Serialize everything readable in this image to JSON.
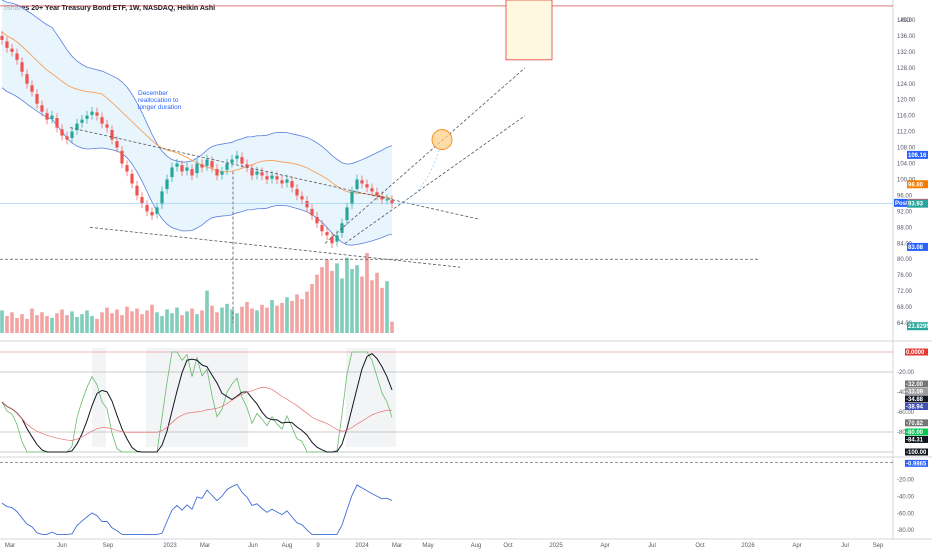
{
  "chart_data": {
    "type": "candlestick",
    "title": "iShares 20+ Year Treasury Bond ETF, 1W, NASDAQ, Heikin Ashi",
    "currency": "USD",
    "annotation": "December\nreallocation to\nlonger duration",
    "x_labels": [
      "Mar",
      "Jun",
      "Sep",
      "2023",
      "Mar",
      "Jun",
      "Aug",
      "9",
      "2024",
      "Mar",
      "May",
      "Aug",
      "Oct",
      "2025",
      "Apr",
      "Jul",
      "Oct",
      "2026",
      "Apr",
      "Jul",
      "Sep"
    ],
    "price_axis": {
      "labels": [
        "140.00",
        "136.00",
        "132.00",
        "128.00",
        "124.00",
        "120.00",
        "116.00",
        "112.00",
        "108.00",
        "104.00",
        "100.00",
        "96.00",
        "92.00",
        "88.00",
        "84.00",
        "80.00",
        "76.00",
        "72.00",
        "68.00",
        "64.00"
      ],
      "range": [
        61,
        145
      ]
    },
    "price_tags": [
      {
        "label": "106.16",
        "value": 106.16,
        "color": "#2962ff"
      },
      {
        "label": "98.80",
        "value": 98.8,
        "color": "#f57c00"
      },
      {
        "label": "94.13",
        "value": 94.13,
        "color": "#2962ff",
        "prefix": "Post"
      },
      {
        "label": "94.09",
        "value": 94.09,
        "color": "#ef5350"
      },
      {
        "label": "93.93",
        "value": 93.93,
        "color": "#26a69a"
      },
      {
        "label": "83.08",
        "value": 83.08,
        "color": "#2962ff"
      },
      {
        "label": "23.829M",
        "value": 63.2,
        "color": "#26a69a"
      }
    ],
    "osc1_axis": {
      "labels": [
        "-20.00",
        "-40.00",
        "-60.00",
        "-80.00"
      ],
      "range": [
        -103,
        4
      ]
    },
    "osc1_tags": [
      {
        "label": "0.0000",
        "value": 0,
        "color": "#e53935"
      },
      {
        "label": "-32.00",
        "value": -32,
        "color": "#757575"
      },
      {
        "label": "-33.09",
        "value": -33.09,
        "color": "#9e9e9e"
      },
      {
        "label": "-34.88",
        "value": -34.88,
        "color": "#131722"
      },
      {
        "label": "-38.94",
        "value": -38.94,
        "color": "#3f51b5"
      },
      {
        "label": "-70.82",
        "value": -70.82,
        "color": "#757575"
      },
      {
        "label": "-80.00",
        "value": -80,
        "color": "#00c853"
      },
      {
        "label": "-84.31",
        "value": -84.31,
        "color": "#131722"
      },
      {
        "label": "-100.00",
        "value": -100,
        "color": "#131722"
      }
    ],
    "osc2_axis": {
      "labels": [
        "-20.00",
        "-40.00",
        "-60.00",
        "-80.00"
      ],
      "range": [
        -88,
        3
      ]
    },
    "osc2_tags": [
      {
        "label": "-0.9865",
        "value": -0.9865,
        "color": "#2962ff"
      }
    ],
    "candles_close": [
      135,
      133,
      132,
      130,
      127,
      124,
      122,
      119,
      117,
      115,
      116,
      113,
      111,
      110,
      112,
      114,
      115,
      116,
      117,
      116,
      114,
      113,
      110,
      108,
      104,
      102,
      99,
      96,
      94,
      92,
      91,
      93,
      97,
      100,
      103,
      104,
      102,
      103,
      101,
      104,
      103,
      105,
      103,
      101,
      102,
      104,
      105,
      106,
      104,
      103,
      101,
      102,
      101,
      100,
      101,
      100,
      99,
      100,
      98,
      96,
      95,
      93,
      91,
      89,
      87,
      86,
      84,
      86,
      89,
      93,
      97,
      100,
      99,
      98,
      97,
      96,
      95,
      95,
      94
    ],
    "volume": [
      24,
      18,
      22,
      16,
      20,
      15,
      26,
      19,
      22,
      18,
      16,
      21,
      25,
      19,
      23,
      17,
      20,
      24,
      18,
      15,
      22,
      27,
      21,
      25,
      19,
      28,
      23,
      26,
      20,
      24,
      30,
      22,
      18,
      25,
      21,
      27,
      19,
      23,
      26,
      20,
      24,
      45,
      29,
      22,
      27,
      31,
      25,
      21,
      28,
      33,
      26,
      24,
      30,
      27,
      35,
      29,
      32,
      38,
      34,
      41,
      36,
      44,
      52,
      62,
      70,
      78,
      66,
      74,
      58,
      80,
      68,
      72,
      60,
      85,
      56,
      64,
      48,
      55,
      12
    ]
  }
}
